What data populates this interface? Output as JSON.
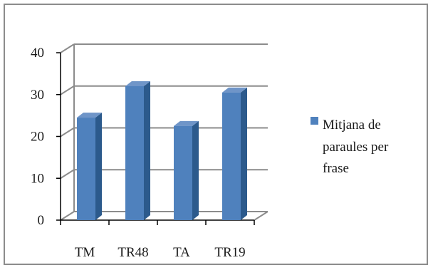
{
  "chart_data": {
    "type": "bar",
    "categories": [
      "TM",
      "TR48",
      "TA",
      "TR19"
    ],
    "series": [
      {
        "name": "Mitjana de paraules per frase",
        "values": [
          24.5,
          32,
          22.5,
          30.5
        ]
      }
    ],
    "yticks": [
      "0",
      "10",
      "20",
      "30",
      "40"
    ],
    "ylim": [
      0,
      40
    ],
    "grid": true,
    "legend_position": "right",
    "colors": {
      "bar_front": "#4f81bd",
      "bar_side": "#2c5a8c",
      "bar_top": "#6f95c8",
      "grid": "#8c8c8c"
    }
  },
  "legend": {
    "lines": [
      "Mitjana de",
      "paraules per",
      "frase"
    ]
  }
}
